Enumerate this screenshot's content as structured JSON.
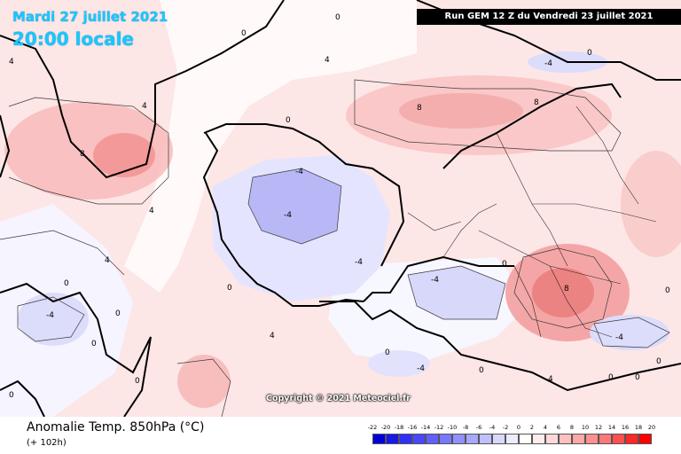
{
  "header": {
    "date": "Mardi 27 juillet 2021",
    "time": "20:00 locale",
    "run": "Run GEM 12 Z du Vendredi 23 juillet 2021"
  },
  "copyright": "Copyright © 2021 Meteociel.fr",
  "footer": {
    "title": "Anomalie Temp. 850hPa (°C)",
    "subtitle": "(+ 102h)"
  },
  "legend": {
    "ticks": [
      "-22",
      "-20",
      "-18",
      "-16",
      "-14",
      "-12",
      "-10",
      "-8",
      "-6",
      "-4",
      "-2",
      "0",
      "2",
      "4",
      "6",
      "8",
      "10",
      "12",
      "14",
      "16",
      "18",
      "20"
    ],
    "colors": [
      "#0000d8",
      "#1818e8",
      "#3030f8",
      "#4848ff",
      "#6060ff",
      "#7878ff",
      "#9090ff",
      "#a8a8ff",
      "#c0c0ff",
      "#d8d8ff",
      "#ececff",
      "#ffffff",
      "#ffecec",
      "#ffd8d8",
      "#ffc0c0",
      "#ffa8a8",
      "#ff9090",
      "#ff7878",
      "#ff5050",
      "#ff2828",
      "#ff0000"
    ]
  },
  "contour_labels": [
    "-4",
    "-4",
    "-4",
    "-4",
    "-4",
    "-4",
    "-4",
    "-4",
    "4",
    "4",
    "4",
    "4",
    "4",
    "4",
    "4",
    "8",
    "8",
    "8",
    "8",
    "0",
    "0",
    "0",
    "0",
    "0",
    "0",
    "0",
    "0",
    "0",
    "0",
    "0",
    "0",
    "0",
    "0",
    "0",
    "0",
    "0"
  ]
}
